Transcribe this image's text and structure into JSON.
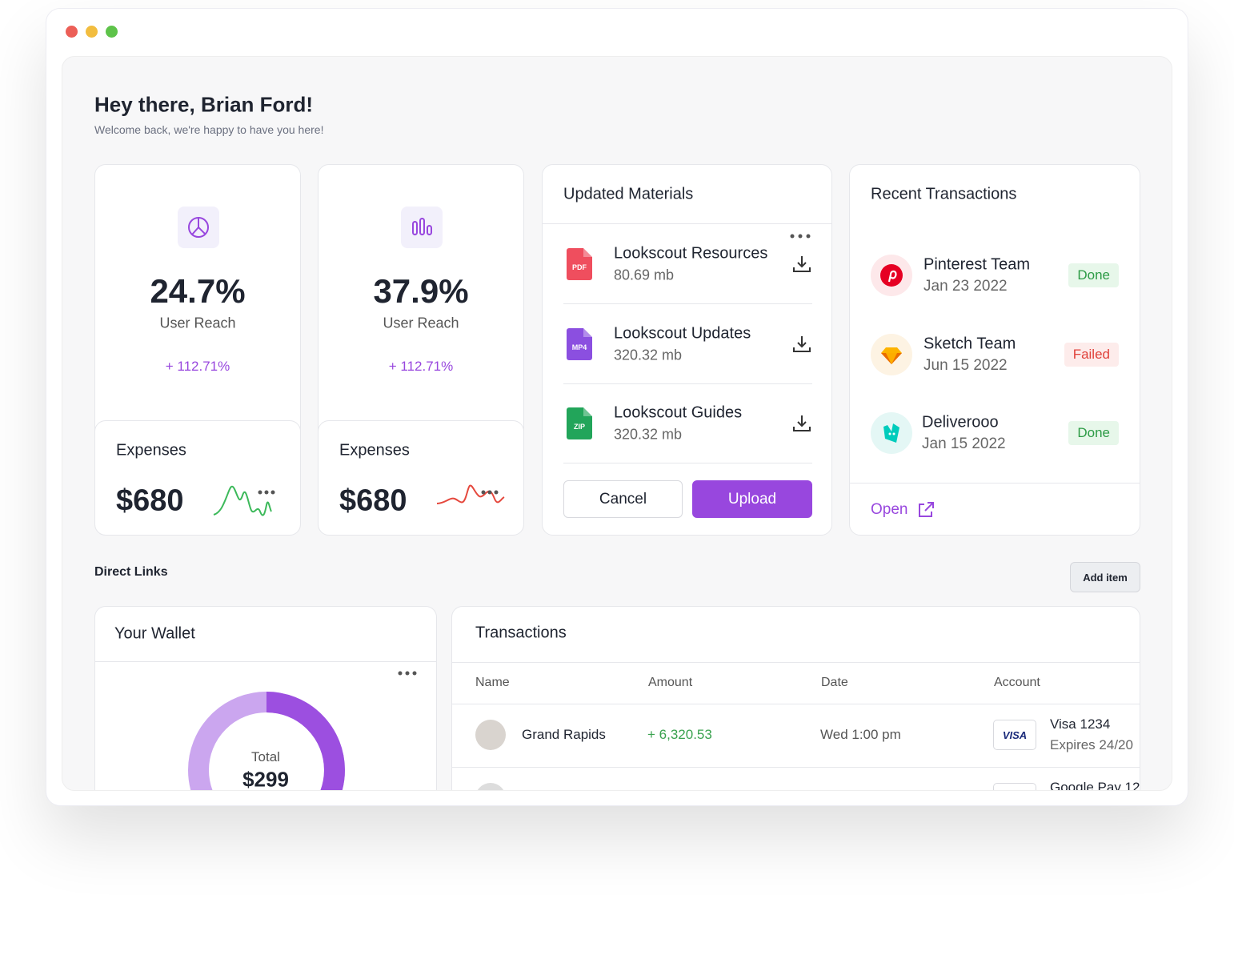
{
  "header": {
    "title": "Hey there, Brian Ford!",
    "subtitle": "Welcome back, we're happy to have you here!"
  },
  "stat_cards": [
    {
      "value": "24.7%",
      "label": "User Reach",
      "change": "+ 112.71%",
      "expenses_label": "Expenses",
      "expenses_value": "$680"
    },
    {
      "value": "37.9%",
      "label": "User Reach",
      "change": "+ 112.71%",
      "expenses_label": "Expenses",
      "expenses_value": "$680"
    }
  ],
  "materials": {
    "title": "Updated Materials",
    "files": [
      {
        "badge": "PDF",
        "name": "Lookscout Resources",
        "size": "80.69 mb"
      },
      {
        "badge": "MP4",
        "name": "Lookscout Updates",
        "size": "320.32 mb"
      },
      {
        "badge": "ZIP",
        "name": "Lookscout Guides",
        "size": "320.32 mb"
      }
    ],
    "cancel": "Cancel",
    "upload": "Upload"
  },
  "recent_transactions": {
    "title": "Recent Transactions",
    "items": [
      {
        "name": "Pinterest Team",
        "date": "Jan 23 2022",
        "status": "Done"
      },
      {
        "name": "Sketch Team",
        "date": "Jun 15 2022",
        "status": "Failed"
      },
      {
        "name": "Deliverooo",
        "date": "Jan 15 2022",
        "status": "Done"
      }
    ],
    "open": "Open"
  },
  "direct_links": {
    "title": "Direct Links",
    "add_item": "Add item"
  },
  "wallet": {
    "title": "Your Wallet",
    "total_label": "Total",
    "total_value": "$299"
  },
  "transactions": {
    "title": "Transactions",
    "columns": [
      "Name",
      "Amount",
      "Date",
      "Account"
    ],
    "rows": [
      {
        "name": "Grand Rapids",
        "amount": "+ 6,320.53",
        "date": "Wed 1:00 pm",
        "account_brand": "VISA",
        "account": "Visa 1234",
        "expires": "Expires 24/20"
      },
      {
        "account": "Google Pay 12"
      }
    ]
  }
}
